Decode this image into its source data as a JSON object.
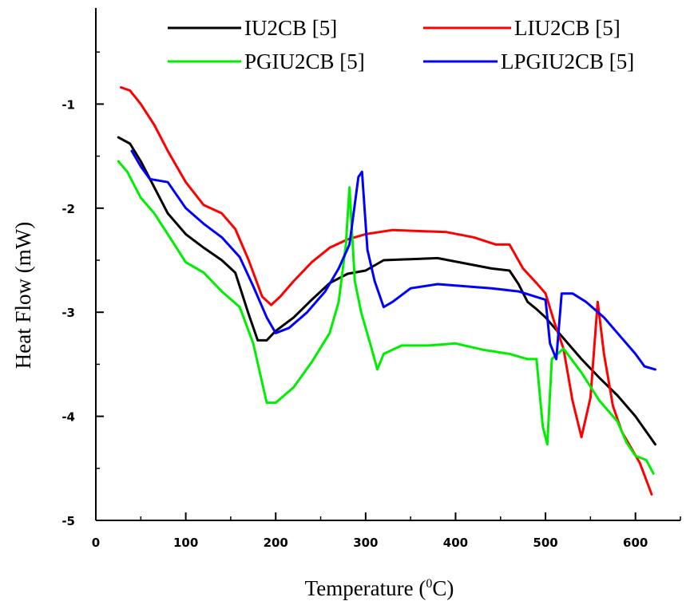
{
  "chart_data": {
    "type": "line",
    "xlabel": "Temperature (°C)",
    "xlabel_main": "Temperature (",
    "xlabel_sup": "0",
    "xlabel_end": "C)",
    "ylabel": "Heat Flow (mW)",
    "xlim": [
      0,
      650
    ],
    "ylim": [
      -5,
      0
    ],
    "x_ticks": [
      0,
      100,
      200,
      300,
      400,
      500,
      600
    ],
    "x_tick_labels": [
      "0",
      "100",
      "200",
      "300",
      "400",
      "500",
      "600"
    ],
    "y_ticks": [
      -5,
      -4,
      -3,
      -2,
      -1
    ],
    "y_tick_labels": [
      "-5",
      "-4",
      "-3",
      "-2",
      "-1"
    ],
    "grid": false,
    "legend_position": "top",
    "series": [
      {
        "name": "IU2CB [5]",
        "color": "#000000",
        "points": [
          [
            25,
            -1.32
          ],
          [
            38,
            -1.38
          ],
          [
            50,
            -1.55
          ],
          [
            65,
            -1.8
          ],
          [
            80,
            -2.05
          ],
          [
            100,
            -2.25
          ],
          [
            120,
            -2.38
          ],
          [
            140,
            -2.5
          ],
          [
            155,
            -2.62
          ],
          [
            170,
            -3.02
          ],
          [
            180,
            -3.27
          ],
          [
            190,
            -3.27
          ],
          [
            200,
            -3.18
          ],
          [
            220,
            -3.05
          ],
          [
            240,
            -2.88
          ],
          [
            260,
            -2.72
          ],
          [
            280,
            -2.63
          ],
          [
            300,
            -2.6
          ],
          [
            320,
            -2.5
          ],
          [
            350,
            -2.49
          ],
          [
            380,
            -2.48
          ],
          [
            410,
            -2.53
          ],
          [
            440,
            -2.58
          ],
          [
            460,
            -2.6
          ],
          [
            470,
            -2.73
          ],
          [
            480,
            -2.9
          ],
          [
            490,
            -2.97
          ],
          [
            500,
            -3.05
          ],
          [
            520,
            -3.25
          ],
          [
            540,
            -3.45
          ],
          [
            560,
            -3.63
          ],
          [
            580,
            -3.8
          ],
          [
            600,
            -4.0
          ],
          [
            622,
            -4.27
          ]
        ]
      },
      {
        "name": "LIU2CB [5]",
        "color": "#ff0000",
        "points": [
          [
            28,
            -0.84
          ],
          [
            38,
            -0.87
          ],
          [
            50,
            -1.0
          ],
          [
            65,
            -1.2
          ],
          [
            80,
            -1.45
          ],
          [
            100,
            -1.75
          ],
          [
            120,
            -1.97
          ],
          [
            140,
            -2.05
          ],
          [
            155,
            -2.2
          ],
          [
            170,
            -2.5
          ],
          [
            185,
            -2.85
          ],
          [
            195,
            -2.93
          ],
          [
            205,
            -2.85
          ],
          [
            220,
            -2.7
          ],
          [
            240,
            -2.52
          ],
          [
            260,
            -2.38
          ],
          [
            280,
            -2.3
          ],
          [
            300,
            -2.25
          ],
          [
            330,
            -2.21
          ],
          [
            360,
            -2.22
          ],
          [
            390,
            -2.23
          ],
          [
            420,
            -2.28
          ],
          [
            445,
            -2.35
          ],
          [
            460,
            -2.35
          ],
          [
            475,
            -2.58
          ],
          [
            490,
            -2.72
          ],
          [
            500,
            -2.82
          ],
          [
            510,
            -3.1
          ],
          [
            520,
            -3.35
          ],
          [
            530,
            -3.85
          ],
          [
            540,
            -4.2
          ],
          [
            550,
            -3.82
          ],
          [
            558,
            -2.9
          ],
          [
            565,
            -3.4
          ],
          [
            575,
            -3.9
          ],
          [
            585,
            -4.15
          ],
          [
            595,
            -4.3
          ],
          [
            605,
            -4.45
          ],
          [
            618,
            -4.75
          ]
        ]
      },
      {
        "name": "PGIU2CB [5]",
        "color": "#00ee00",
        "points": [
          [
            25,
            -1.55
          ],
          [
            35,
            -1.65
          ],
          [
            50,
            -1.9
          ],
          [
            65,
            -2.05
          ],
          [
            80,
            -2.25
          ],
          [
            100,
            -2.52
          ],
          [
            120,
            -2.62
          ],
          [
            140,
            -2.8
          ],
          [
            160,
            -2.95
          ],
          [
            175,
            -3.3
          ],
          [
            190,
            -3.87
          ],
          [
            200,
            -3.87
          ],
          [
            220,
            -3.72
          ],
          [
            240,
            -3.48
          ],
          [
            260,
            -3.2
          ],
          [
            270,
            -2.9
          ],
          [
            278,
            -2.35
          ],
          [
            282,
            -1.8
          ],
          [
            288,
            -2.7
          ],
          [
            295,
            -3.0
          ],
          [
            305,
            -3.3
          ],
          [
            313,
            -3.55
          ],
          [
            320,
            -3.4
          ],
          [
            340,
            -3.32
          ],
          [
            370,
            -3.32
          ],
          [
            400,
            -3.3
          ],
          [
            430,
            -3.36
          ],
          [
            460,
            -3.4
          ],
          [
            480,
            -3.45
          ],
          [
            490,
            -3.45
          ],
          [
            497,
            -4.1
          ],
          [
            502,
            -4.27
          ],
          [
            507,
            -3.45
          ],
          [
            520,
            -3.35
          ],
          [
            540,
            -3.58
          ],
          [
            560,
            -3.85
          ],
          [
            580,
            -4.05
          ],
          [
            590,
            -4.25
          ],
          [
            600,
            -4.38
          ],
          [
            612,
            -4.42
          ],
          [
            620,
            -4.55
          ]
        ]
      },
      {
        "name": "LPGIU2CB [5]",
        "color": "#0000ff",
        "points": [
          [
            40,
            -1.45
          ],
          [
            50,
            -1.6
          ],
          [
            60,
            -1.72
          ],
          [
            80,
            -1.75
          ],
          [
            100,
            -2.0
          ],
          [
            120,
            -2.15
          ],
          [
            140,
            -2.28
          ],
          [
            160,
            -2.47
          ],
          [
            175,
            -2.75
          ],
          [
            190,
            -3.05
          ],
          [
            200,
            -3.2
          ],
          [
            215,
            -3.15
          ],
          [
            235,
            -3.0
          ],
          [
            255,
            -2.8
          ],
          [
            270,
            -2.58
          ],
          [
            282,
            -2.35
          ],
          [
            292,
            -1.7
          ],
          [
            296,
            -1.65
          ],
          [
            302,
            -2.4
          ],
          [
            310,
            -2.7
          ],
          [
            320,
            -2.95
          ],
          [
            330,
            -2.9
          ],
          [
            350,
            -2.77
          ],
          [
            380,
            -2.73
          ],
          [
            410,
            -2.75
          ],
          [
            440,
            -2.77
          ],
          [
            470,
            -2.8
          ],
          [
            500,
            -2.88
          ],
          [
            505,
            -3.3
          ],
          [
            512,
            -3.45
          ],
          [
            518,
            -2.82
          ],
          [
            530,
            -2.82
          ],
          [
            545,
            -2.9
          ],
          [
            565,
            -3.05
          ],
          [
            585,
            -3.25
          ],
          [
            600,
            -3.4
          ],
          [
            610,
            -3.52
          ],
          [
            622,
            -3.55
          ]
        ]
      }
    ]
  }
}
